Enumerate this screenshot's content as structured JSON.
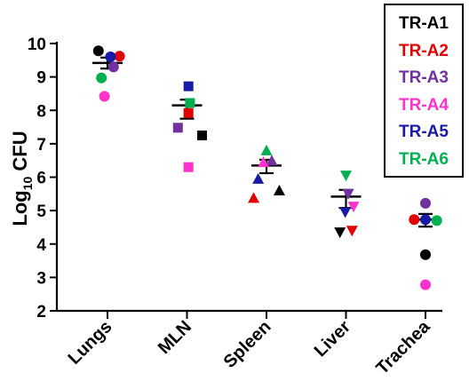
{
  "chart_data": {
    "type": "scatter",
    "ylabel_main": "Log",
    "ylabel_sub": "10",
    "ylabel_tail": " CFU",
    "ylim": [
      2,
      10
    ],
    "yticks": [
      "2",
      "3",
      "4",
      "5",
      "6",
      "7",
      "8",
      "9",
      "10"
    ],
    "categories": [
      "Lungs",
      "MLN",
      "Spleen",
      "Liver",
      "Trachea"
    ],
    "markers": [
      "circle",
      "square",
      "triangle-up",
      "triangle-down",
      "circle"
    ],
    "means": [
      9.42,
      8.15,
      6.35,
      5.42,
      4.73
    ],
    "sem_low": [
      9.25,
      7.75,
      6.12,
      5.08,
      4.52
    ],
    "sem_high": [
      9.58,
      8.32,
      6.52,
      5.62,
      4.9
    ],
    "series": [
      {
        "name": "TR-A1",
        "color": "#000000",
        "values": [
          9.78,
          7.25,
          5.6,
          4.35,
          3.68
        ],
        "offsets": [
          -0.6,
          1.0,
          0.85,
          -0.4,
          0
        ]
      },
      {
        "name": "TR-A2",
        "color": "#e00000",
        "values": [
          9.62,
          7.92,
          5.38,
          4.4,
          4.73
        ],
        "offsets": [
          0.8,
          0.1,
          -0.85,
          0.4,
          -0.75
        ]
      },
      {
        "name": "TR-A3",
        "color": "#7030a0",
        "values": [
          9.3,
          7.48,
          6.5,
          5.5,
          5.22
        ],
        "offsets": [
          0.4,
          -0.6,
          0.35,
          0.15,
          0
        ]
      },
      {
        "name": "TR-A4",
        "color": "#ff33cc",
        "values": [
          8.42,
          6.3,
          6.45,
          5.12,
          2.78
        ],
        "offsets": [
          -0.2,
          0.1,
          -0.2,
          0.5,
          0
        ]
      },
      {
        "name": "TR-A5",
        "color": "#1a1aa8",
        "values": [
          9.6,
          8.72,
          5.95,
          4.95,
          4.73
        ],
        "offsets": [
          0.2,
          0.1,
          -0.55,
          -0.05,
          0
        ]
      },
      {
        "name": "TR-A6",
        "color": "#00b050",
        "values": [
          8.97,
          8.22,
          6.8,
          6.05,
          4.7
        ],
        "offsets": [
          -0.4,
          0.2,
          0.0,
          0.0,
          0.75
        ]
      }
    ]
  }
}
